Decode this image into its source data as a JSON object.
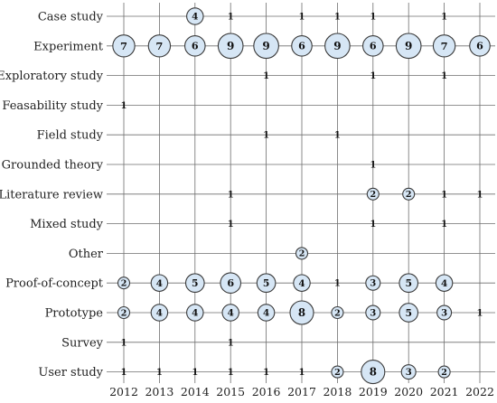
{
  "chart_data": {
    "type": "bubble-matrix",
    "rows": [
      "Case study",
      "Experiment",
      "Exploratory study",
      "Feasability study",
      "Field study",
      "Grounded theory",
      "Literature review",
      "Mixed study",
      "Other",
      "Proof-of-concept",
      "Prototype",
      "Survey",
      "User study"
    ],
    "years": [
      "2012",
      "2013",
      "2014",
      "2015",
      "2016",
      "2017",
      "2018",
      "2019",
      "2020",
      "2021",
      "2022"
    ],
    "counts": [
      [
        null,
        null,
        4,
        1,
        null,
        1,
        1,
        1,
        null,
        1,
        null
      ],
      [
        7,
        7,
        6,
        9,
        9,
        6,
        9,
        6,
        9,
        7,
        6
      ],
      [
        null,
        null,
        null,
        null,
        1,
        null,
        null,
        1,
        null,
        1,
        null
      ],
      [
        1,
        null,
        null,
        null,
        null,
        null,
        null,
        null,
        null,
        null,
        null
      ],
      [
        null,
        null,
        null,
        null,
        1,
        null,
        1,
        null,
        null,
        null,
        null
      ],
      [
        null,
        null,
        null,
        null,
        null,
        null,
        null,
        1,
        null,
        null,
        null
      ],
      [
        null,
        null,
        null,
        1,
        null,
        null,
        null,
        2,
        2,
        1,
        1
      ],
      [
        null,
        null,
        null,
        1,
        null,
        null,
        null,
        1,
        null,
        1,
        null
      ],
      [
        null,
        null,
        null,
        null,
        null,
        2,
        null,
        null,
        null,
        null,
        null
      ],
      [
        2,
        4,
        5,
        6,
        5,
        4,
        1,
        3,
        5,
        4,
        null
      ],
      [
        2,
        4,
        4,
        4,
        4,
        8,
        2,
        3,
        5,
        3,
        1
      ],
      [
        1,
        null,
        null,
        1,
        null,
        null,
        null,
        null,
        null,
        null,
        null
      ],
      [
        1,
        1,
        1,
        1,
        1,
        1,
        2,
        8,
        3,
        2,
        null
      ]
    ],
    "colors": {
      "bubble_fill": "#d6e6f5",
      "bubble_stroke": "#3a3a3a",
      "grid": "#6e6e6e",
      "text": "#222222"
    },
    "grid": true
  }
}
